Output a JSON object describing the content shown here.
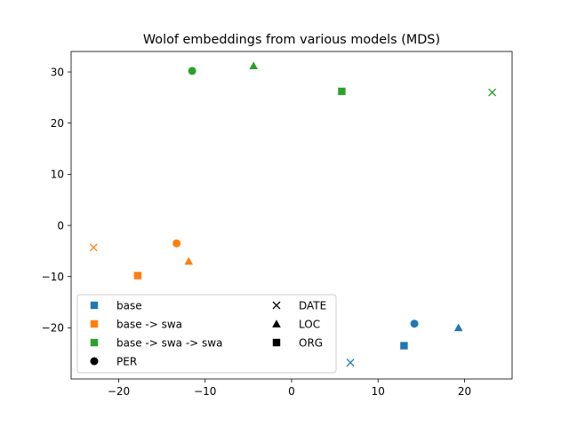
{
  "chart_data": {
    "type": "scatter",
    "title": "Wolof embeddings from various models (MDS)",
    "xlabel": "",
    "ylabel": "",
    "xlim": [
      -25.5,
      25.5
    ],
    "ylim": [
      -30,
      34
    ],
    "xticks": [
      -20,
      -10,
      0,
      10,
      20
    ],
    "yticks": [
      -20,
      -10,
      0,
      10,
      20,
      30
    ],
    "grid": false,
    "legend_placement": "lower-left",
    "series": [
      {
        "name": "base",
        "color": "#1f77b4",
        "points": [
          {
            "label": "PER",
            "marker": "circle",
            "x": 14.2,
            "y": -19.2
          },
          {
            "label": "LOC",
            "marker": "triangle",
            "x": 19.3,
            "y": -20.0
          },
          {
            "label": "ORG",
            "marker": "square",
            "x": 13.0,
            "y": -23.5
          },
          {
            "label": "DATE",
            "marker": "x",
            "x": 6.8,
            "y": -26.8
          }
        ]
      },
      {
        "name": "base -> swa",
        "color": "#ff7f0e",
        "points": [
          {
            "label": "PER",
            "marker": "circle",
            "x": -13.3,
            "y": -3.5
          },
          {
            "label": "LOC",
            "marker": "triangle",
            "x": -11.9,
            "y": -7.0
          },
          {
            "label": "ORG",
            "marker": "square",
            "x": -17.8,
            "y": -9.8
          },
          {
            "label": "DATE",
            "marker": "x",
            "x": -22.9,
            "y": -4.3
          }
        ]
      },
      {
        "name": "base -> swa -> swa",
        "color": "#2ca02c",
        "points": [
          {
            "label": "PER",
            "marker": "circle",
            "x": -11.5,
            "y": 30.2
          },
          {
            "label": "LOC",
            "marker": "triangle",
            "x": -4.4,
            "y": 31.2
          },
          {
            "label": "ORG",
            "marker": "square",
            "x": 5.8,
            "y": 26.2
          },
          {
            "label": "DATE",
            "marker": "x",
            "x": 23.2,
            "y": 26.0
          }
        ]
      }
    ],
    "legend": {
      "colors": [
        {
          "label": "base",
          "color": "#1f77b4"
        },
        {
          "label": "base -> swa",
          "color": "#ff7f0e"
        },
        {
          "label": "base -> swa -> swa",
          "color": "#2ca02c"
        }
      ],
      "markers": [
        {
          "label": "PER",
          "marker": "circle"
        },
        {
          "label": "DATE",
          "marker": "x"
        },
        {
          "label": "LOC",
          "marker": "triangle"
        },
        {
          "label": "ORG",
          "marker": "square"
        }
      ]
    }
  }
}
